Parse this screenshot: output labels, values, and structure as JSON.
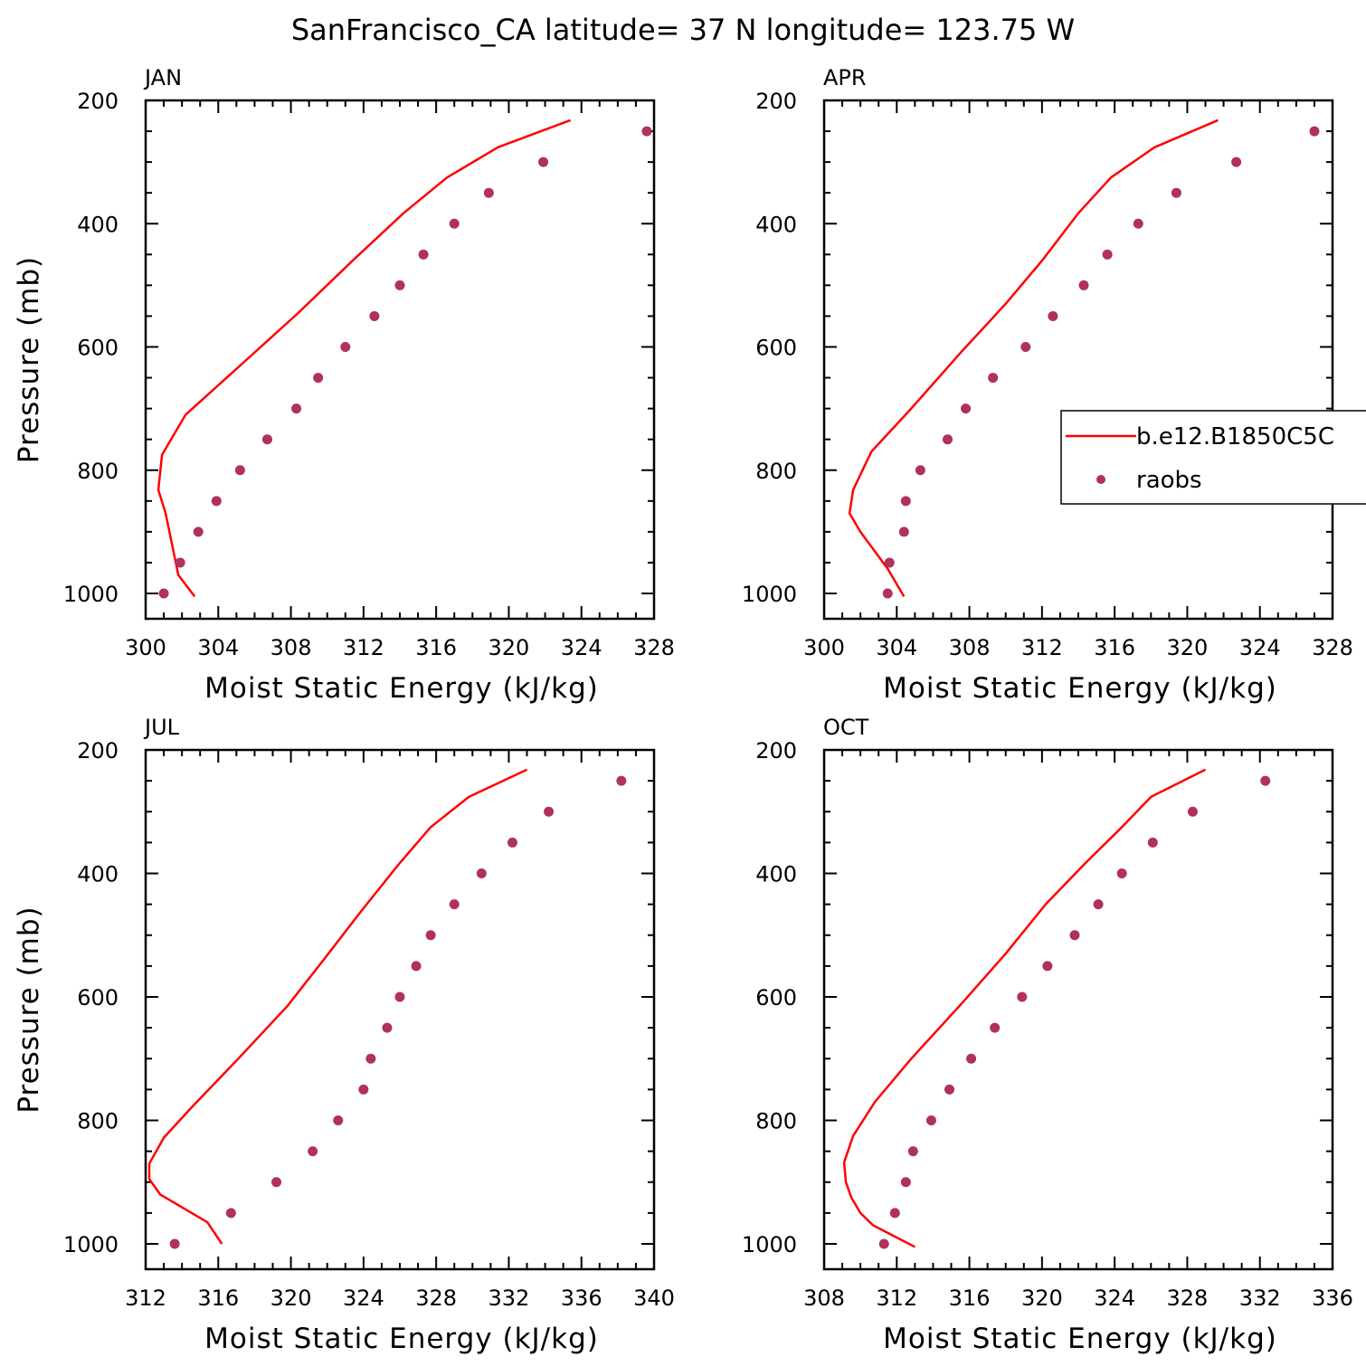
{
  "title": "SanFrancisco_CA  latitude= 37 N longitude= 123.75 W",
  "legend": {
    "model_label": "b.e12.B1850C5C",
    "obs_label": "raobs",
    "model_color": "#ff0000",
    "obs_color": "#b03060"
  },
  "chart_data": [
    {
      "type": "line",
      "panel": "JAN",
      "xlabel": "Moist Static Energy (kJ/kg)",
      "ylabel": "Pressure (mb)",
      "xlim": [
        300,
        328
      ],
      "ylim": [
        1040,
        200
      ],
      "xticks": [
        300,
        304,
        308,
        312,
        316,
        320,
        324,
        328
      ],
      "yticks": [
        200,
        400,
        600,
        800,
        1000
      ],
      "yticks_display": [
        "200",
        "400",
        "600",
        "800",
        "1000"
      ],
      "series": [
        {
          "name": "b.e12.B1850C5C",
          "kind": "line",
          "x": [
            323.4,
            319.4,
            316.6,
            314.2,
            311.4,
            308.4,
            305.4,
            302.2,
            300.9,
            300.7,
            301.1,
            301.8,
            302.7
          ],
          "y": [
            232,
            276,
            325,
            383,
            460,
            545,
            625,
            710,
            775,
            832,
            870,
            970,
            1005
          ]
        },
        {
          "name": "raobs",
          "kind": "scatter",
          "x": [
            327.6,
            321.9,
            318.9,
            317.0,
            315.3,
            314.0,
            312.6,
            311.0,
            309.5,
            308.3,
            306.7,
            305.2,
            303.9,
            302.9,
            301.9,
            301.0
          ],
          "y": [
            250,
            300,
            350,
            400,
            450,
            500,
            550,
            600,
            650,
            700,
            750,
            800,
            850,
            900,
            950,
            1000
          ]
        }
      ]
    },
    {
      "type": "line",
      "panel": "APR",
      "xlabel": "Moist Static Energy (kJ/kg)",
      "ylabel": "",
      "xlim": [
        300,
        328
      ],
      "ylim": [
        1040,
        200
      ],
      "xticks": [
        300,
        304,
        308,
        312,
        316,
        320,
        324,
        328
      ],
      "yticks": [
        200,
        400,
        600,
        800,
        1000
      ],
      "yticks_display": [
        "200",
        "400",
        "600",
        "800",
        "1000"
      ],
      "series": [
        {
          "name": "b.e12.B1850C5C",
          "kind": "line",
          "x": [
            321.7,
            318.2,
            315.8,
            314.0,
            312.0,
            310.0,
            307.5,
            304.8,
            302.6,
            301.6,
            301.4,
            302.0,
            303.5,
            304.4
          ],
          "y": [
            232,
            276,
            325,
            383,
            460,
            530,
            610,
            700,
            770,
            832,
            870,
            900,
            960,
            1005
          ]
        },
        {
          "name": "raobs",
          "kind": "scatter",
          "x": [
            327.0,
            322.7,
            319.4,
            317.3,
            315.6,
            314.3,
            312.6,
            311.1,
            309.3,
            307.8,
            306.8,
            305.3,
            304.5,
            304.4,
            303.6,
            303.5
          ],
          "y": [
            250,
            300,
            350,
            400,
            450,
            500,
            550,
            600,
            650,
            700,
            750,
            800,
            850,
            900,
            950,
            1000
          ]
        }
      ]
    },
    {
      "type": "line",
      "panel": "JUL",
      "xlabel": "Moist Static Energy (kJ/kg)",
      "ylabel": "Pressure (mb)",
      "xlim": [
        312,
        340
      ],
      "ylim": [
        1040,
        200
      ],
      "xticks": [
        312,
        316,
        320,
        324,
        328,
        332,
        336,
        340
      ],
      "yticks": [
        200,
        400,
        600,
        800,
        1000
      ],
      "yticks_display": [
        "200",
        "400",
        "600",
        "800",
        "1000"
      ],
      "series": [
        {
          "name": "b.e12.B1850C5C",
          "kind": "line",
          "x": [
            333.0,
            329.8,
            327.7,
            326.0,
            323.9,
            321.8,
            319.8,
            317.1,
            314.5,
            313.0,
            312.2,
            312.2,
            312.8,
            315.4,
            316.2
          ],
          "y": [
            232,
            276,
            325,
            383,
            460,
            540,
            615,
            700,
            780,
            828,
            870,
            895,
            920,
            965,
            1000
          ]
        },
        {
          "name": "raobs",
          "kind": "scatter",
          "x": [
            338.2,
            334.2,
            332.2,
            330.5,
            329.0,
            327.7,
            326.9,
            326.0,
            325.3,
            324.4,
            324.0,
            322.6,
            321.2,
            319.2,
            316.7,
            313.6
          ],
          "y": [
            250,
            300,
            350,
            400,
            450,
            500,
            550,
            600,
            650,
            700,
            750,
            800,
            850,
            900,
            950,
            1000
          ]
        }
      ]
    },
    {
      "type": "line",
      "panel": "OCT",
      "xlabel": "Moist Static Energy (kJ/kg)",
      "ylabel": "",
      "xlim": [
        308,
        336
      ],
      "ylim": [
        1040,
        200
      ],
      "xticks": [
        308,
        312,
        316,
        320,
        324,
        328,
        332,
        336
      ],
      "yticks": [
        200,
        400,
        600,
        800,
        1000
      ],
      "yticks_display": [
        "200",
        "400",
        "600",
        "800",
        "1000"
      ],
      "series": [
        {
          "name": "b.e12.B1850C5C",
          "kind": "line",
          "x": [
            329.0,
            326.0,
            324.4,
            322.4,
            320.2,
            318.0,
            315.6,
            312.8,
            310.8,
            309.6,
            309.1,
            309.2,
            309.5,
            310.0,
            310.7,
            313.0
          ],
          "y": [
            232,
            276,
            325,
            383,
            450,
            530,
            610,
            700,
            770,
            825,
            868,
            900,
            925,
            950,
            970,
            1005
          ]
        },
        {
          "name": "raobs",
          "kind": "scatter",
          "x": [
            332.3,
            328.3,
            326.1,
            324.4,
            323.1,
            321.8,
            320.3,
            318.9,
            317.4,
            316.1,
            314.9,
            313.9,
            312.9,
            312.5,
            311.9,
            311.3
          ],
          "y": [
            250,
            300,
            350,
            400,
            450,
            500,
            550,
            600,
            650,
            700,
            750,
            800,
            850,
            900,
            950,
            1000
          ]
        }
      ]
    }
  ]
}
